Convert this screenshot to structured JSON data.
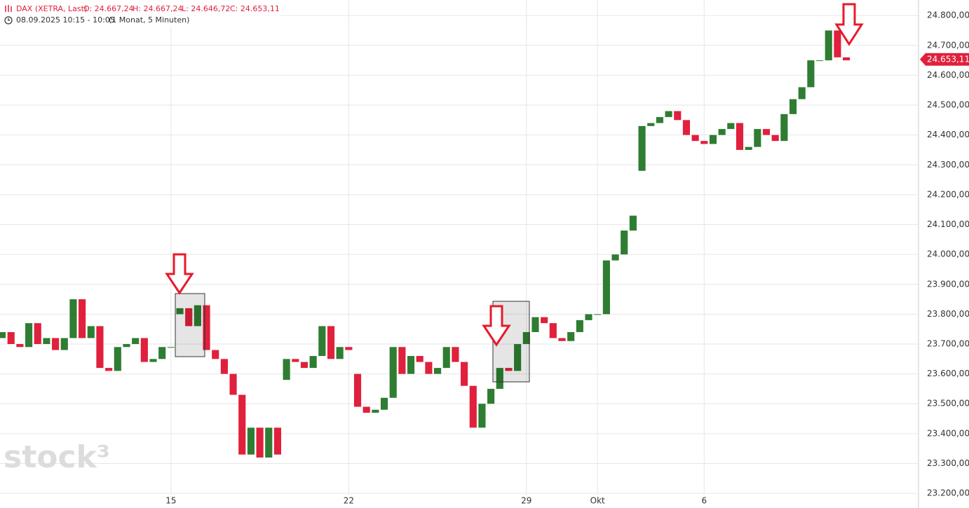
{
  "header": {
    "symbol": "DAX (XETRA, Last)",
    "open": "O: 24.667,24",
    "high": "H: 24.667,24",
    "low": "L: 24.646,72",
    "close": "C: 24.653,11",
    "period": "08.09.2025 10:15 - 10:05",
    "interval": "(1 Monat, 5 Minuten)"
  },
  "chart_data": {
    "type": "candlestick",
    "watermark": "stock³",
    "up_color": "#2e7d32",
    "down_color": "#e0203c",
    "grid": true,
    "xlim": [
      0.19,
      26.03
    ],
    "ylim": [
      23151,
      24852
    ],
    "xticks": [
      {
        "value": 5,
        "label": "15"
      },
      {
        "value": 10,
        "label": "22"
      },
      {
        "value": 15,
        "label": "29"
      },
      {
        "value": 17,
        "label": "Okt"
      },
      {
        "value": 20,
        "label": "6"
      }
    ],
    "yticks": [
      {
        "value": 23200,
        "label": "23.200,00"
      },
      {
        "value": 23300,
        "label": "23.300,00"
      },
      {
        "value": 23400,
        "label": "23.400,00"
      },
      {
        "value": 23500,
        "label": "23.500,00"
      },
      {
        "value": 23600,
        "label": "23.600,00"
      },
      {
        "value": 23700,
        "label": "23.700,00"
      },
      {
        "value": 23800,
        "label": "23.800,00"
      },
      {
        "value": 23900,
        "label": "23.900,00"
      },
      {
        "value": 24000,
        "label": "24.000,00"
      },
      {
        "value": 24100,
        "label": "24.100,00"
      },
      {
        "value": 24200,
        "label": "24.200,00"
      },
      {
        "value": 24300,
        "label": "24.300,00"
      },
      {
        "value": 24400,
        "label": "24.400,00"
      },
      {
        "value": 24500,
        "label": "24.500,00"
      },
      {
        "value": 24600,
        "label": "24.600,00"
      },
      {
        "value": 24700,
        "label": "24.700,00"
      },
      {
        "value": 24800,
        "label": "24.800,00"
      }
    ],
    "last_price": {
      "value": 24653.11,
      "label": "24.653,11"
    },
    "x": [
      0.25,
      0.5,
      0.75,
      1,
      1.25,
      1.5,
      1.75,
      2,
      2.25,
      2.5,
      2.75,
      3,
      3.25,
      3.5,
      3.75,
      4,
      4.25,
      4.5,
      4.75,
      5,
      5.25,
      5.5,
      5.75,
      6,
      6.25,
      6.5,
      6.75,
      7,
      7.25,
      7.5,
      7.75,
      8,
      8.25,
      8.5,
      8.75,
      9,
      9.25,
      9.5,
      9.75,
      10,
      10.25,
      10.5,
      10.75,
      11,
      11.25,
      11.5,
      11.75,
      12,
      12.25,
      12.5,
      12.75,
      13,
      13.25,
      13.5,
      13.75,
      14,
      14.25,
      14.5,
      14.75,
      15,
      15.25,
      15.5,
      15.75,
      16,
      16.25,
      16.5,
      16.75,
      17,
      17.25,
      17.5,
      17.75,
      18,
      18.25,
      18.5,
      18.75,
      19,
      19.25,
      19.5,
      19.75,
      20,
      20.25,
      20.5,
      20.75,
      21,
      21.25,
      21.5,
      21.75,
      22,
      22.25,
      22.5,
      22.75,
      23,
      23.25,
      23.5,
      23.75,
      24
    ],
    "open": [
      23720,
      23740,
      23700,
      23690,
      23770,
      23700,
      23720,
      23680,
      23720,
      23850,
      23720,
      23760,
      23620,
      23610,
      23690,
      23700,
      23720,
      23640,
      23650,
      23690,
      23800,
      23820,
      23760,
      23830,
      23680,
      23650,
      23600,
      23530,
      23330,
      23420,
      23320,
      23420,
      23580,
      23650,
      23640,
      23620,
      23660,
      23760,
      23650,
      23690,
      23600,
      23490,
      23470,
      23480,
      23520,
      23690,
      23600,
      23660,
      23640,
      23600,
      23620,
      23690,
      23640,
      23560,
      23420,
      23500,
      23550,
      23620,
      23610,
      23700,
      23740,
      23790,
      23770,
      23720,
      23710,
      23740,
      23780,
      23800,
      23800,
      23980,
      24000,
      24080,
      24280,
      24430,
      24440,
      24460,
      24480,
      24450,
      24400,
      24380,
      24370,
      24400,
      24420,
      24440,
      24350,
      24360,
      24420,
      24400,
      24380,
      24470,
      24520,
      24560,
      24650,
      24650,
      24750,
      24660
    ],
    "close": [
      23740,
      23700,
      23690,
      23770,
      23700,
      23720,
      23680,
      23720,
      23850,
      23720,
      23760,
      23620,
      23610,
      23690,
      23700,
      23720,
      23640,
      23650,
      23690,
      23690,
      23820,
      23760,
      23830,
      23680,
      23650,
      23600,
      23530,
      23330,
      23420,
      23320,
      23420,
      23330,
      23650,
      23640,
      23620,
      23660,
      23760,
      23650,
      23690,
      23680,
      23490,
      23470,
      23480,
      23520,
      23690,
      23600,
      23660,
      23640,
      23600,
      23620,
      23690,
      23640,
      23560,
      23420,
      23500,
      23550,
      23620,
      23610,
      23700,
      23740,
      23790,
      23770,
      23720,
      23710,
      23740,
      23780,
      23800,
      23800,
      23980,
      24000,
      24080,
      24130,
      24430,
      24440,
      24460,
      24480,
      24450,
      24400,
      24380,
      24370,
      24400,
      24420,
      24440,
      24350,
      24360,
      24420,
      24400,
      24380,
      24470,
      24520,
      24560,
      24650,
      24650,
      24750,
      24660,
      24650
    ]
  }
}
